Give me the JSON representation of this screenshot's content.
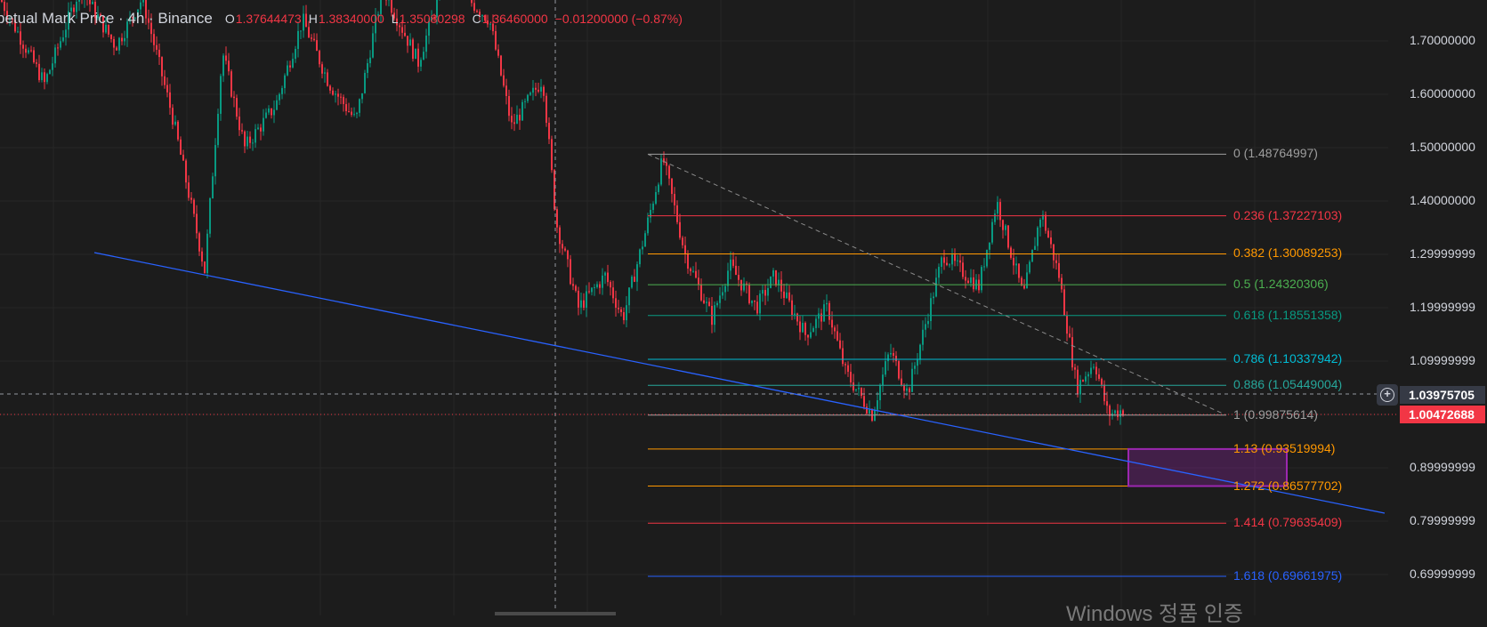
{
  "legend": {
    "title": "petual Mark Price · 4h · Binance",
    "open_label": "O",
    "open": "1.37644473",
    "high_label": "H",
    "high": "1.38340000",
    "low_label": "L",
    "low": "1.35080298",
    "close_label": "C",
    "close": "1.36460000",
    "change": "−0.01200000 (−0.87%)"
  },
  "price_axis": {
    "labels": [
      {
        "text": "1.70000000",
        "value": 1.7
      },
      {
        "text": "1.60000000",
        "value": 1.6
      },
      {
        "text": "1.50000000",
        "value": 1.5
      },
      {
        "text": "1.40000000",
        "value": 1.4
      },
      {
        "text": "1.29999999",
        "value": 1.3
      },
      {
        "text": "1.19999999",
        "value": 1.2
      },
      {
        "text": "1.09999999",
        "value": 1.1
      },
      {
        "text": "0.89999999",
        "value": 0.9
      },
      {
        "text": "0.79999999",
        "value": 0.8
      },
      {
        "text": "0.69999999",
        "value": 0.7
      }
    ],
    "crosshair_price": "1.03975705",
    "last_price": "1.00472688"
  },
  "fib_levels": [
    {
      "label": "0 (1.48764997)",
      "value": 1.48764997,
      "color": "#9e9e9e"
    },
    {
      "label": "0.236 (1.37227103)",
      "value": 1.37227103,
      "color": "#f23645"
    },
    {
      "label": "0.382 (1.30089253)",
      "value": 1.30089253,
      "color": "#ff9800"
    },
    {
      "label": "0.5 (1.24320306)",
      "value": 1.24320306,
      "color": "#4caf50"
    },
    {
      "label": "0.618 (1.18551358)",
      "value": 1.18551358,
      "color": "#089981"
    },
    {
      "label": "0.786 (1.10337942)",
      "value": 1.10337942,
      "color": "#00bcd4"
    },
    {
      "label": "0.886 (1.05449004)",
      "value": 1.05449004,
      "color": "#26a69a"
    },
    {
      "label": "1 (0.99875614)",
      "value": 0.99875614,
      "color": "#9e9e9e"
    },
    {
      "label": "1.13 (0.93519994)",
      "value": 0.93519994,
      "color": "#ff9800"
    },
    {
      "label": "1.272 (0.86577702)",
      "value": 0.86577702,
      "color": "#ff9800"
    },
    {
      "label": "1.414 (0.79635409)",
      "value": 0.79635409,
      "color": "#f23645"
    },
    {
      "label": "1.618 (0.69661975)",
      "value": 0.69661975,
      "color": "#2962ff"
    }
  ],
  "colors": {
    "background": "#1c1c1c",
    "bull": "#089981",
    "bear": "#f23645",
    "trendline": "#2962ff",
    "target_box": "#9c27b0"
  },
  "crosshair_icon": "plus-circle-icon",
  "watermark": "Windows 정품 인증"
}
